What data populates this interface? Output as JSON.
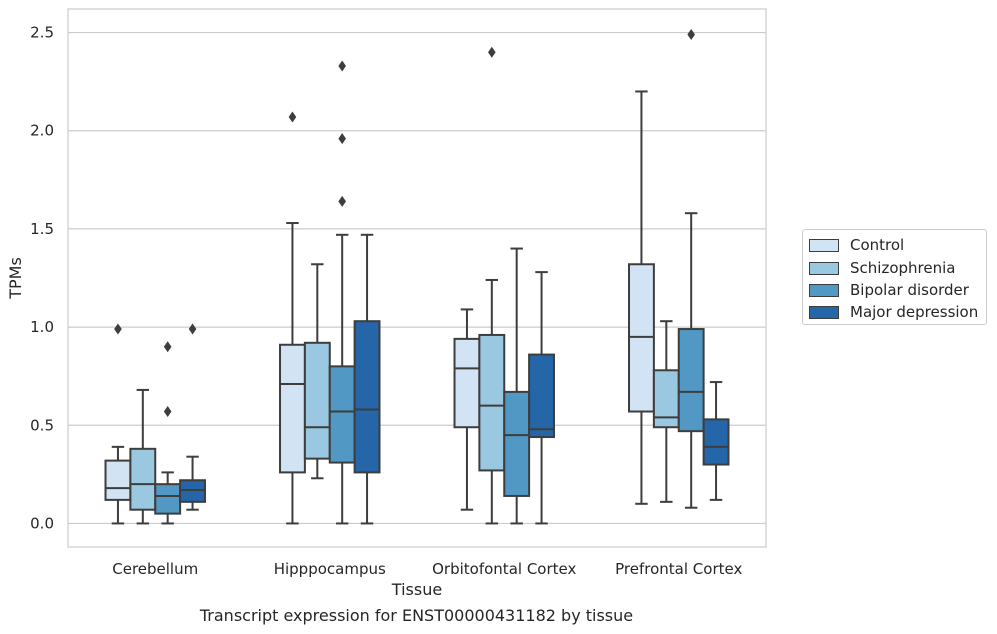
{
  "caption": "Transcript expression for ENST00000431182 by tissue",
  "chart_data": {
    "type": "box",
    "xlabel": "Tissue",
    "ylabel": "TPMs",
    "ylim": [
      -0.12,
      2.62
    ],
    "yticks": [
      0.0,
      0.5,
      1.0,
      1.5,
      2.0,
      2.5
    ],
    "ytick_labels": [
      "0.0",
      "0.5",
      "1.0",
      "1.5",
      "2.0",
      "2.5"
    ],
    "grid": "horizontal",
    "legend_placement": "right",
    "categories": [
      "Cerebellum",
      "Hipppocampus",
      "Orbitofontal Cortex",
      "Prefrontal Cortex"
    ],
    "series": [
      {
        "name": "Control",
        "color": "#d2e3f3",
        "boxes": [
          {
            "whislo": 0.0,
            "q1": 0.12,
            "med": 0.18,
            "q3": 0.32,
            "whishi": 0.39,
            "fliers": [
              0.99
            ]
          },
          {
            "whislo": 0.0,
            "q1": 0.26,
            "med": 0.71,
            "q3": 0.91,
            "whishi": 1.53,
            "fliers": [
              2.07
            ]
          },
          {
            "whislo": 0.07,
            "q1": 0.49,
            "med": 0.79,
            "q3": 0.94,
            "whishi": 1.09,
            "fliers": []
          },
          {
            "whislo": 0.1,
            "q1": 0.57,
            "med": 0.95,
            "q3": 1.32,
            "whishi": 2.2,
            "fliers": []
          }
        ]
      },
      {
        "name": "Schizophrenia",
        "color": "#9ac8e0",
        "boxes": [
          {
            "whislo": 0.0,
            "q1": 0.07,
            "med": 0.2,
            "q3": 0.38,
            "whishi": 0.68,
            "fliers": []
          },
          {
            "whislo": 0.23,
            "q1": 0.33,
            "med": 0.49,
            "q3": 0.92,
            "whishi": 1.32,
            "fliers": []
          },
          {
            "whislo": 0.0,
            "q1": 0.27,
            "med": 0.6,
            "q3": 0.96,
            "whishi": 1.24,
            "fliers": [
              2.4
            ]
          },
          {
            "whislo": 0.11,
            "q1": 0.49,
            "med": 0.54,
            "q3": 0.78,
            "whishi": 1.03,
            "fliers": []
          }
        ]
      },
      {
        "name": "Bipolar disorder",
        "color": "#5198c5",
        "boxes": [
          {
            "whislo": 0.0,
            "q1": 0.05,
            "med": 0.14,
            "q3": 0.2,
            "whishi": 0.26,
            "fliers": [
              0.57,
              0.9
            ]
          },
          {
            "whislo": 0.0,
            "q1": 0.31,
            "med": 0.57,
            "q3": 0.8,
            "whishi": 1.47,
            "fliers": [
              1.64,
              1.96,
              2.33
            ]
          },
          {
            "whislo": 0.0,
            "q1": 0.14,
            "med": 0.45,
            "q3": 0.67,
            "whishi": 1.4,
            "fliers": []
          },
          {
            "whislo": 0.08,
            "q1": 0.47,
            "med": 0.67,
            "q3": 0.99,
            "whishi": 1.58,
            "fliers": [
              2.49
            ]
          }
        ]
      },
      {
        "name": "Major depression",
        "color": "#2466a8",
        "boxes": [
          {
            "whislo": 0.07,
            "q1": 0.11,
            "med": 0.17,
            "q3": 0.22,
            "whishi": 0.34,
            "fliers": [
              0.99
            ]
          },
          {
            "whislo": 0.0,
            "q1": 0.26,
            "med": 0.58,
            "q3": 1.03,
            "whishi": 1.47,
            "fliers": []
          },
          {
            "whislo": 0.0,
            "q1": 0.44,
            "med": 0.48,
            "q3": 0.86,
            "whishi": 1.28,
            "fliers": []
          },
          {
            "whislo": 0.12,
            "q1": 0.3,
            "med": 0.39,
            "q3": 0.53,
            "whishi": 0.72,
            "fliers": []
          }
        ]
      }
    ]
  }
}
